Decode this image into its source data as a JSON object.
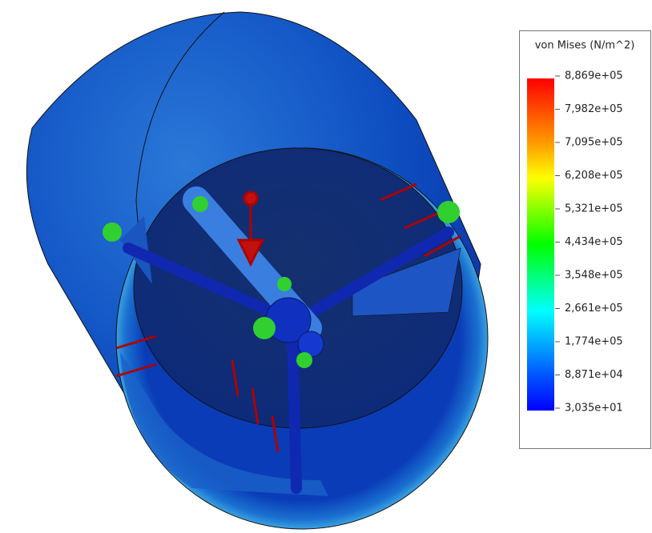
{
  "legend": {
    "title": "von Mises (N/m^2)",
    "labels": [
      "8,869e+05",
      "7,982e+05",
      "7,095e+05",
      "6,208e+05",
      "5,321e+05",
      "4,434e+05",
      "3,548e+05",
      "2,661e+05",
      "1,774e+05",
      "8,871e+04",
      "3,035e+01"
    ]
  }
}
